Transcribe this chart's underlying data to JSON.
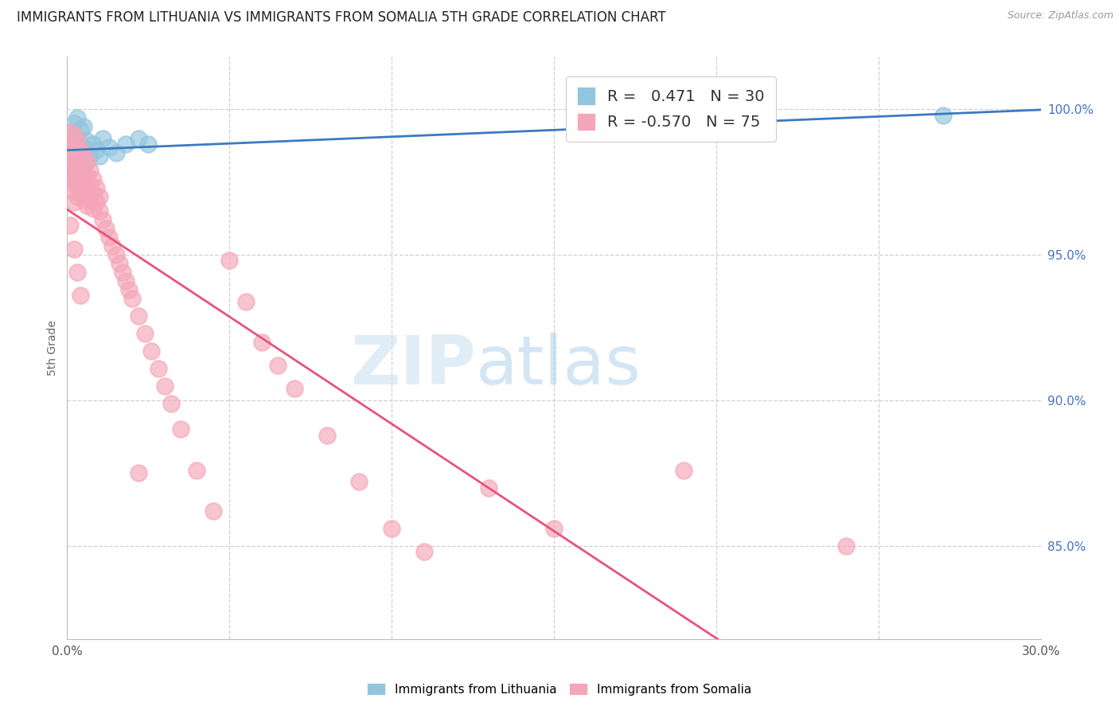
{
  "title": "IMMIGRANTS FROM LITHUANIA VS IMMIGRANTS FROM SOMALIA 5TH GRADE CORRELATION CHART",
  "source": "Source: ZipAtlas.com",
  "ylabel": "5th Grade",
  "right_yticks": [
    "100.0%",
    "95.0%",
    "90.0%",
    "85.0%"
  ],
  "right_ytick_vals": [
    1.0,
    0.95,
    0.9,
    0.85
  ],
  "xlim": [
    0.0,
    0.3
  ],
  "ylim": [
    0.818,
    1.018
  ],
  "watermark_text": "ZIPatlas",
  "legend": {
    "lithuania_label": "Immigrants from Lithuania",
    "somalia_label": "Immigrants from Somalia",
    "lith_R": "R =   0.471",
    "lith_N": "N = 30",
    "soma_R": "R = -0.570",
    "soma_N": "N = 75"
  },
  "lithuania_color": "#92c5de",
  "somalia_color": "#f4a6b8",
  "lithuania_line_color": "#3a7bbf",
  "somalia_line_color": "#e8537a",
  "grid_color": "#d0d0d0",
  "background_color": "#ffffff",
  "title_color": "#222222",
  "right_axis_color": "#4472c4",
  "lithuania_x": [
    0.001,
    0.001,
    0.001,
    0.002,
    0.002,
    0.002,
    0.002,
    0.003,
    0.003,
    0.003,
    0.003,
    0.004,
    0.004,
    0.004,
    0.005,
    0.005,
    0.005,
    0.006,
    0.006,
    0.007,
    0.008,
    0.009,
    0.01,
    0.011,
    0.013,
    0.015,
    0.018,
    0.022,
    0.025,
    0.27
  ],
  "lithuania_y": [
    0.978,
    0.982,
    0.992,
    0.976,
    0.981,
    0.988,
    0.995,
    0.979,
    0.984,
    0.99,
    0.997,
    0.978,
    0.986,
    0.993,
    0.98,
    0.987,
    0.994,
    0.982,
    0.989,
    0.984,
    0.988,
    0.986,
    0.984,
    0.99,
    0.987,
    0.985,
    0.988,
    0.99,
    0.988,
    0.998
  ],
  "somalia_x": [
    0.001,
    0.001,
    0.001,
    0.001,
    0.001,
    0.002,
    0.002,
    0.002,
    0.002,
    0.002,
    0.002,
    0.003,
    0.003,
    0.003,
    0.003,
    0.003,
    0.004,
    0.004,
    0.004,
    0.004,
    0.005,
    0.005,
    0.005,
    0.005,
    0.006,
    0.006,
    0.006,
    0.006,
    0.007,
    0.007,
    0.007,
    0.008,
    0.008,
    0.008,
    0.009,
    0.009,
    0.01,
    0.01,
    0.011,
    0.012,
    0.013,
    0.014,
    0.015,
    0.016,
    0.017,
    0.018,
    0.019,
    0.02,
    0.022,
    0.024,
    0.026,
    0.028,
    0.03,
    0.032,
    0.035,
    0.04,
    0.045,
    0.05,
    0.055,
    0.06,
    0.065,
    0.07,
    0.08,
    0.09,
    0.1,
    0.11,
    0.13,
    0.15,
    0.19,
    0.24,
    0.001,
    0.002,
    0.003,
    0.004,
    0.022
  ],
  "somalia_y": [
    0.992,
    0.988,
    0.984,
    0.979,
    0.975,
    0.991,
    0.987,
    0.982,
    0.977,
    0.972,
    0.968,
    0.989,
    0.984,
    0.979,
    0.974,
    0.97,
    0.986,
    0.981,
    0.976,
    0.971,
    0.984,
    0.979,
    0.974,
    0.969,
    0.982,
    0.977,
    0.972,
    0.967,
    0.979,
    0.974,
    0.969,
    0.976,
    0.971,
    0.966,
    0.973,
    0.968,
    0.97,
    0.965,
    0.962,
    0.959,
    0.956,
    0.953,
    0.95,
    0.947,
    0.944,
    0.941,
    0.938,
    0.935,
    0.929,
    0.923,
    0.917,
    0.911,
    0.905,
    0.899,
    0.89,
    0.876,
    0.862,
    0.948,
    0.934,
    0.92,
    0.912,
    0.904,
    0.888,
    0.872,
    0.856,
    0.848,
    0.87,
    0.856,
    0.876,
    0.85,
    0.96,
    0.952,
    0.944,
    0.936,
    0.875
  ]
}
